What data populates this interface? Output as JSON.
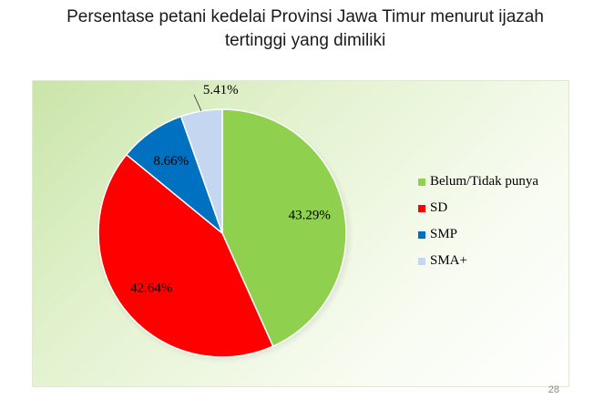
{
  "slide": {
    "title_line1": "Persentase petani kedelai Provinsi Jawa Timur menurut ijazah",
    "title_line2": "tertinggi yang dimiliki",
    "page_number": "28"
  },
  "colors": {
    "panel_bg": "#d9edbf",
    "series": [
      "#8fd14f",
      "#ff0000",
      "#0070c0",
      "#c5d6f0"
    ]
  },
  "chart_data": {
    "type": "pie",
    "title": "Persentase petani kedelai Provinsi Jawa Timur menurut ijazah tertinggi yang dimiliki",
    "categories": [
      "Belum/Tidak punya",
      "SD",
      "SMP",
      "SMA+"
    ],
    "values": [
      43.29,
      42.64,
      8.66,
      5.41
    ],
    "labels": [
      "43.29%",
      "42.64%",
      "8.66%",
      "5.41%"
    ],
    "start_angle": "12 o'clock",
    "direction": "clockwise",
    "legend_position": "right"
  }
}
